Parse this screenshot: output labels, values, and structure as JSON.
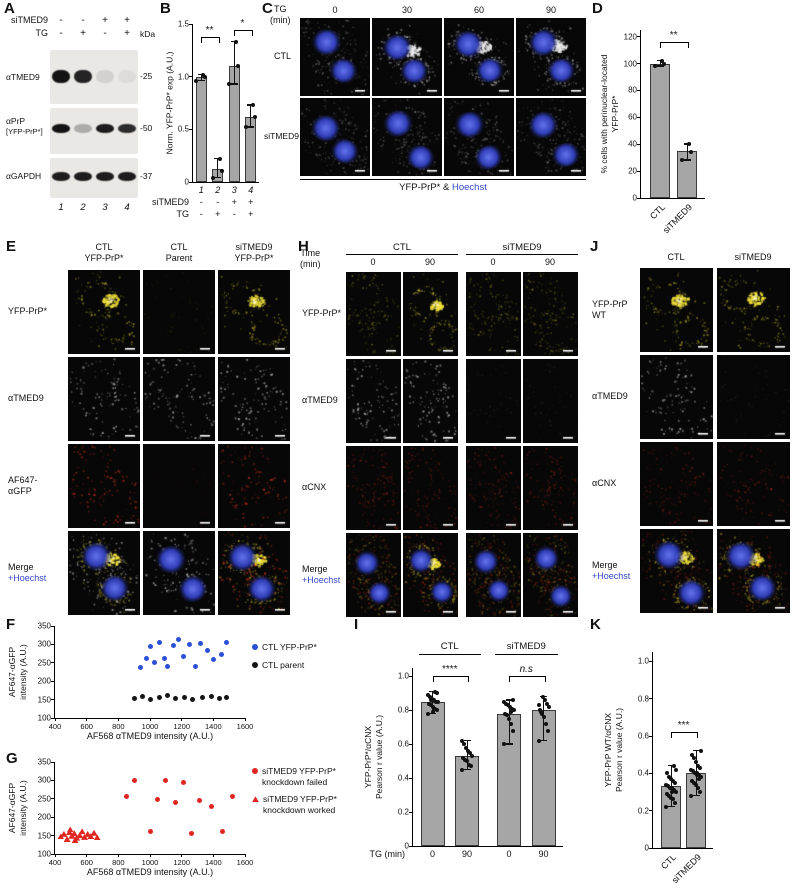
{
  "colors": {
    "bar_fill": "#a6a6a6",
    "hoechst": "#4656d8",
    "yfp": "#f0e03a",
    "white_channel": "#eaeaea",
    "red_channel": "#ff3b25",
    "blue_text": "#3346cc",
    "scatter_blue": "#2b4fd7",
    "scatter_black": "#151515",
    "scatter_red": "#e02621"
  },
  "panelA": {
    "label": "A",
    "rows": [
      {
        "label": "siTMED9",
        "values": [
          "-",
          "-",
          "+",
          "+"
        ]
      },
      {
        "label": "TG",
        "values": [
          "-",
          "+",
          "-",
          "+"
        ]
      }
    ],
    "kda_label": "kDa",
    "blots": [
      {
        "lines": [
          "αTMED9"
        ],
        "marker": "-25",
        "bands": [
          1,
          0.92,
          0.1,
          0.05
        ]
      },
      {
        "lines": [
          "αPrP",
          "[YFP-PrP*]"
        ],
        "marker": "-50",
        "bands": [
          1,
          0.28,
          0.95,
          0.88
        ]
      },
      {
        "lines": [
          "αGAPDH"
        ],
        "marker": "-37",
        "bands": [
          0.95,
          0.95,
          0.95,
          0.95
        ]
      }
    ],
    "lane_numbers": [
      "1",
      "2",
      "3",
      "4"
    ]
  },
  "panelB": {
    "label": "B"
  },
  "panelC": {
    "label": "C",
    "axis_label": "TG\n(min)",
    "col_labels": [
      "0",
      "30",
      "60",
      "90"
    ],
    "row_labels": [
      "CTL",
      "siTMED9"
    ],
    "caption_main": "YFP-PrP*",
    "caption_sep": " & ",
    "caption_stain": "Hoechst"
  },
  "panelD": {
    "label": "D"
  },
  "panelE": {
    "label": "E",
    "col_labels": [
      [
        "CTL",
        "YFP-PrP*"
      ],
      [
        "CTL",
        "Parent"
      ],
      [
        "siTMED9",
        "YFP-PrP*"
      ]
    ],
    "row_labels": [
      [
        "YFP-PrP*"
      ],
      [
        "αTMED9"
      ],
      [
        "AF647-",
        "αGFP"
      ],
      [
        "Merge",
        "+Hoechst"
      ]
    ]
  },
  "panelF": {
    "label": "F"
  },
  "panelG": {
    "label": "G"
  },
  "panelH": {
    "label": "H",
    "axis_label": "Time\n(min)",
    "group_labels": [
      "CTL",
      "siTMED9"
    ],
    "col_labels": [
      "0",
      "90",
      "0",
      "90"
    ],
    "row_labels": [
      [
        "YFP-PrP*"
      ],
      [
        "αTMED9"
      ],
      [
        "αCNX"
      ],
      [
        "Merge",
        "+Hoechst"
      ]
    ]
  },
  "panelI": {
    "label": "I"
  },
  "panelJ": {
    "label": "J",
    "col_labels": [
      "CTL",
      "siTMED9"
    ],
    "row_labels": [
      [
        "YFP-PrP",
        "WT"
      ],
      [
        "αTMED9"
      ],
      [
        "αCNX"
      ],
      [
        "Merge",
        "+Hoechst"
      ]
    ]
  },
  "panelK": {
    "label": "K"
  },
  "chart_data": [
    {
      "panel": "B",
      "type": "bar",
      "categories": [
        "1",
        "2",
        "3",
        "4"
      ],
      "values": [
        1.0,
        0.12,
        1.1,
        0.62
      ],
      "points": [
        [
          0.96,
          1.0,
          1.02
        ],
        [
          0.04,
          0.1,
          0.22
        ],
        [
          0.93,
          1.1,
          1.33
        ],
        [
          0.52,
          0.62,
          0.73
        ]
      ],
      "ylabel": "Norm. YFP-PrP* exp (A.U.)",
      "ylim": [
        0,
        1.5
      ],
      "yticks": [
        "0",
        "0.5",
        "1.0",
        "1.5"
      ],
      "centers": [
        0.125,
        0.375,
        0.625,
        0.875
      ],
      "italic_cats": true,
      "condition_rows": [
        {
          "label": "siTMED9",
          "values": [
            "-",
            "-",
            "+",
            "+"
          ]
        },
        {
          "label": "TG",
          "values": [
            "-",
            "+",
            "-",
            "+"
          ]
        }
      ],
      "significance": [
        {
          "from": 0,
          "to": 1,
          "label": "**",
          "y": 1.38
        },
        {
          "from": 2,
          "to": 3,
          "label": "*",
          "y": 1.44
        }
      ]
    },
    {
      "panel": "D",
      "type": "bar",
      "categories": [
        "CTL",
        "siTMED9"
      ],
      "values": [
        100,
        35
      ],
      "points": [
        [
          98,
          100,
          102
        ],
        [
          28,
          34,
          40
        ]
      ],
      "ylabel": "% cells with perinuclear-located\nYFP-PrP*",
      "ylim": [
        0,
        125
      ],
      "yticks": [
        "0",
        "20",
        "40",
        "60",
        "80",
        "100",
        "120"
      ],
      "centers": [
        0.3,
        0.72
      ],
      "rotate_xlabels": true,
      "significance": [
        {
          "from": 0,
          "to": 1,
          "label": "**",
          "y": 116
        }
      ]
    },
    {
      "panel": "F",
      "type": "scatter",
      "xlabel": "AF568 αTMED9 intensity (A.U.)",
      "ylabel": "AF647-αGFP\nintensity (A.U.)",
      "xlim": [
        400,
        1600
      ],
      "xticks": [
        400,
        600,
        800,
        1000,
        1200,
        1400,
        1600
      ],
      "ylim": [
        100,
        350
      ],
      "yticks": [
        100,
        150,
        200,
        250,
        300,
        350
      ],
      "series": [
        {
          "name": "CTL YFP-PrP*",
          "marker": "circle",
          "color": "#2b4fd7",
          "points": [
            [
              940,
              236
            ],
            [
              980,
              262
            ],
            [
              1000,
              293
            ],
            [
              1030,
              252
            ],
            [
              1060,
              306
            ],
            [
              1090,
              263
            ],
            [
              1110,
              241
            ],
            [
              1150,
              297
            ],
            [
              1180,
              312
            ],
            [
              1210,
              268
            ],
            [
              1250,
              301
            ],
            [
              1290,
              241
            ],
            [
              1320,
              302
            ],
            [
              1360,
              283
            ],
            [
              1400,
              258
            ],
            [
              1450,
              272
            ],
            [
              1480,
              305
            ]
          ]
        },
        {
          "name": "CTL parent",
          "marker": "circle",
          "color": "#151515",
          "points": [
            [
              900,
              153
            ],
            [
              950,
              158
            ],
            [
              1000,
              150
            ],
            [
              1060,
              156
            ],
            [
              1110,
              160
            ],
            [
              1160,
              152
            ],
            [
              1220,
              157
            ],
            [
              1270,
              150
            ],
            [
              1330,
              155
            ],
            [
              1390,
              158
            ],
            [
              1440,
              152
            ],
            [
              1480,
              156
            ]
          ]
        }
      ]
    },
    {
      "panel": "G",
      "type": "scatter",
      "xlabel": "AF568 αTMED9 intensity (A.U.)",
      "ylabel": "AF647-αGFP\nintensity (A.U.)",
      "xlim": [
        400,
        1600
      ],
      "xticks": [
        400,
        600,
        800,
        1000,
        1200,
        1400,
        1600
      ],
      "ylim": [
        100,
        350
      ],
      "yticks": [
        100,
        150,
        200,
        250,
        300,
        350
      ],
      "series": [
        {
          "name": "siTMED9 YFP-PrP* knockdown failed",
          "name_lines": [
            "siTMED9 YFP-PrP*",
            "knockdown failed"
          ],
          "marker": "circle",
          "color": "#e02621",
          "points": [
            [
              850,
              256
            ],
            [
              900,
              300
            ],
            [
              1000,
              160
            ],
            [
              1050,
              249
            ],
            [
              1100,
              301
            ],
            [
              1160,
              241
            ],
            [
              1210,
              293
            ],
            [
              1260,
              156
            ],
            [
              1310,
              246
            ],
            [
              1390,
              229
            ],
            [
              1460,
              161
            ],
            [
              1520,
              257
            ]
          ]
        },
        {
          "name": "siTMED9 YFP-PrP* knockdown worked",
          "name_lines": [
            "siTMED9 YFP-PrP*",
            "knockdown worked"
          ],
          "marker": "triangle",
          "color": "#e02621",
          "points": [
            [
              430,
              149
            ],
            [
              450,
              156
            ],
            [
              470,
              142
            ],
            [
              485,
              161
            ],
            [
              500,
              151
            ],
            [
              515,
              158
            ],
            [
              530,
              146
            ],
            [
              550,
              153
            ],
            [
              565,
              163
            ],
            [
              580,
              148
            ],
            [
              600,
              156
            ],
            [
              620,
              150
            ],
            [
              640,
              159
            ],
            [
              660,
              147
            ],
            [
              520,
              139
            ],
            [
              490,
              168
            ]
          ]
        }
      ]
    },
    {
      "panel": "I",
      "type": "bar",
      "categories": [
        "0",
        "90",
        "0",
        "90"
      ],
      "xlabel": "TG (min)",
      "values": [
        0.85,
        0.53,
        0.78,
        0.8
      ],
      "points": [
        [
          0.78,
          0.8,
          0.81,
          0.82,
          0.83,
          0.84,
          0.85,
          0.85,
          0.86,
          0.87,
          0.88,
          0.89,
          0.9,
          0.91,
          0.79,
          0.86
        ],
        [
          0.45,
          0.47,
          0.48,
          0.5,
          0.51,
          0.52,
          0.53,
          0.55,
          0.56,
          0.58,
          0.6,
          0.62
        ],
        [
          0.6,
          0.68,
          0.72,
          0.75,
          0.77,
          0.78,
          0.8,
          0.81,
          0.82,
          0.83,
          0.84,
          0.85,
          0.86,
          0.79
        ],
        [
          0.62,
          0.68,
          0.72,
          0.76,
          0.78,
          0.8,
          0.82,
          0.84,
          0.86,
          0.88,
          0.79,
          0.83
        ]
      ],
      "ylabel": "YFP-PrP*/αCNX\nPearson r value (A.U.)",
      "ylim": [
        0,
        1.05
      ],
      "yticks": [
        "0",
        "0.2",
        "0.4",
        "0.6",
        "0.8",
        "1.0"
      ],
      "centers": [
        0.13,
        0.36,
        0.64,
        0.87
      ],
      "groups": [
        {
          "label": "CTL",
          "from": 0,
          "to": 1
        },
        {
          "label": "siTMED9",
          "from": 2,
          "to": 3
        }
      ],
      "significance": [
        {
          "from": 0,
          "to": 1,
          "label": "****",
          "y": 1.0
        },
        {
          "from": 2,
          "to": 3,
          "label": "n.s",
          "y": 1.0,
          "italic": true
        }
      ]
    },
    {
      "panel": "K",
      "type": "bar",
      "categories": [
        "CTL",
        "siTMED9"
      ],
      "values": [
        0.33,
        0.4
      ],
      "points": [
        [
          0.22,
          0.24,
          0.26,
          0.27,
          0.28,
          0.29,
          0.3,
          0.31,
          0.32,
          0.32,
          0.33,
          0.34,
          0.35,
          0.36,
          0.37,
          0.38,
          0.4,
          0.42,
          0.44,
          0.3
        ],
        [
          0.28,
          0.3,
          0.32,
          0.34,
          0.35,
          0.36,
          0.38,
          0.39,
          0.4,
          0.4,
          0.41,
          0.42,
          0.43,
          0.44,
          0.46,
          0.48,
          0.5,
          0.52,
          0.37,
          0.39
        ]
      ],
      "ylabel": "YFP-PrP WT/αCNX\nPearson r value (A.U.)",
      "ylim": [
        0,
        1.05
      ],
      "yticks": [
        "0",
        "0.2",
        "0.4",
        "0.6",
        "0.8",
        "1.0"
      ],
      "centers": [
        0.3,
        0.72
      ],
      "rotate_xlabels": true,
      "significance": [
        {
          "from": 0,
          "to": 1,
          "label": "***",
          "y": 0.62
        }
      ]
    }
  ]
}
